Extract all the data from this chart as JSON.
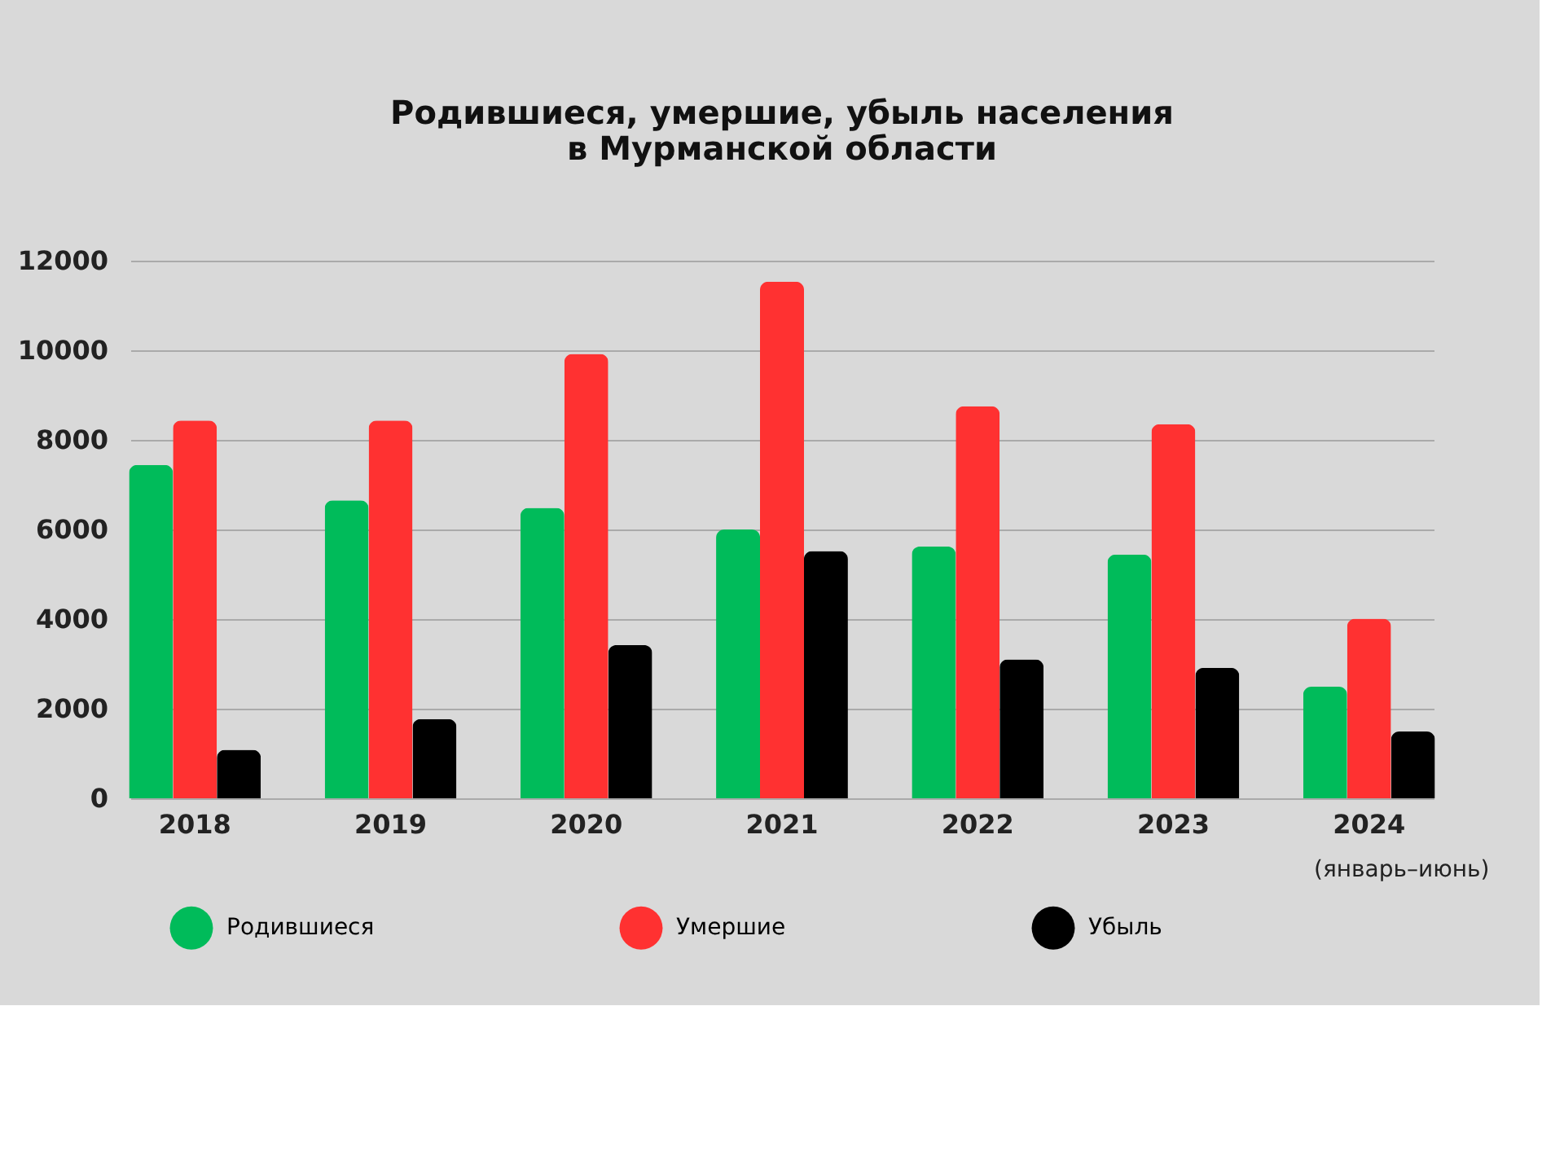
{
  "chart_data": {
    "type": "bar",
    "title": [
      "Родившиеся, умершие, убыль населения",
      "в Мурманской области"
    ],
    "categories": [
      "2018",
      "2019",
      "2020",
      "2021",
      "2022",
      "2023",
      "2024"
    ],
    "series": [
      {
        "name": "Родившиеся",
        "color": "#00bb5a",
        "values": [
          7440,
          6650,
          6480,
          6000,
          5620,
          5440,
          2490
        ]
      },
      {
        "name": "Умершие",
        "color": "#ff3131",
        "values": [
          8430,
          8430,
          9920,
          11530,
          8750,
          8350,
          4010
        ]
      },
      {
        "name": "Убыль",
        "color": "#000000",
        "values": [
          1080,
          1770,
          3420,
          5520,
          3100,
          2910,
          1490
        ]
      }
    ],
    "annotations": [
      "(январь–июнь)"
    ],
    "ylim": [
      0,
      12000
    ],
    "yticks": [
      0,
      2000,
      4000,
      6000,
      8000,
      10000,
      12000
    ],
    "grid": "y",
    "legend": "bottom"
  }
}
